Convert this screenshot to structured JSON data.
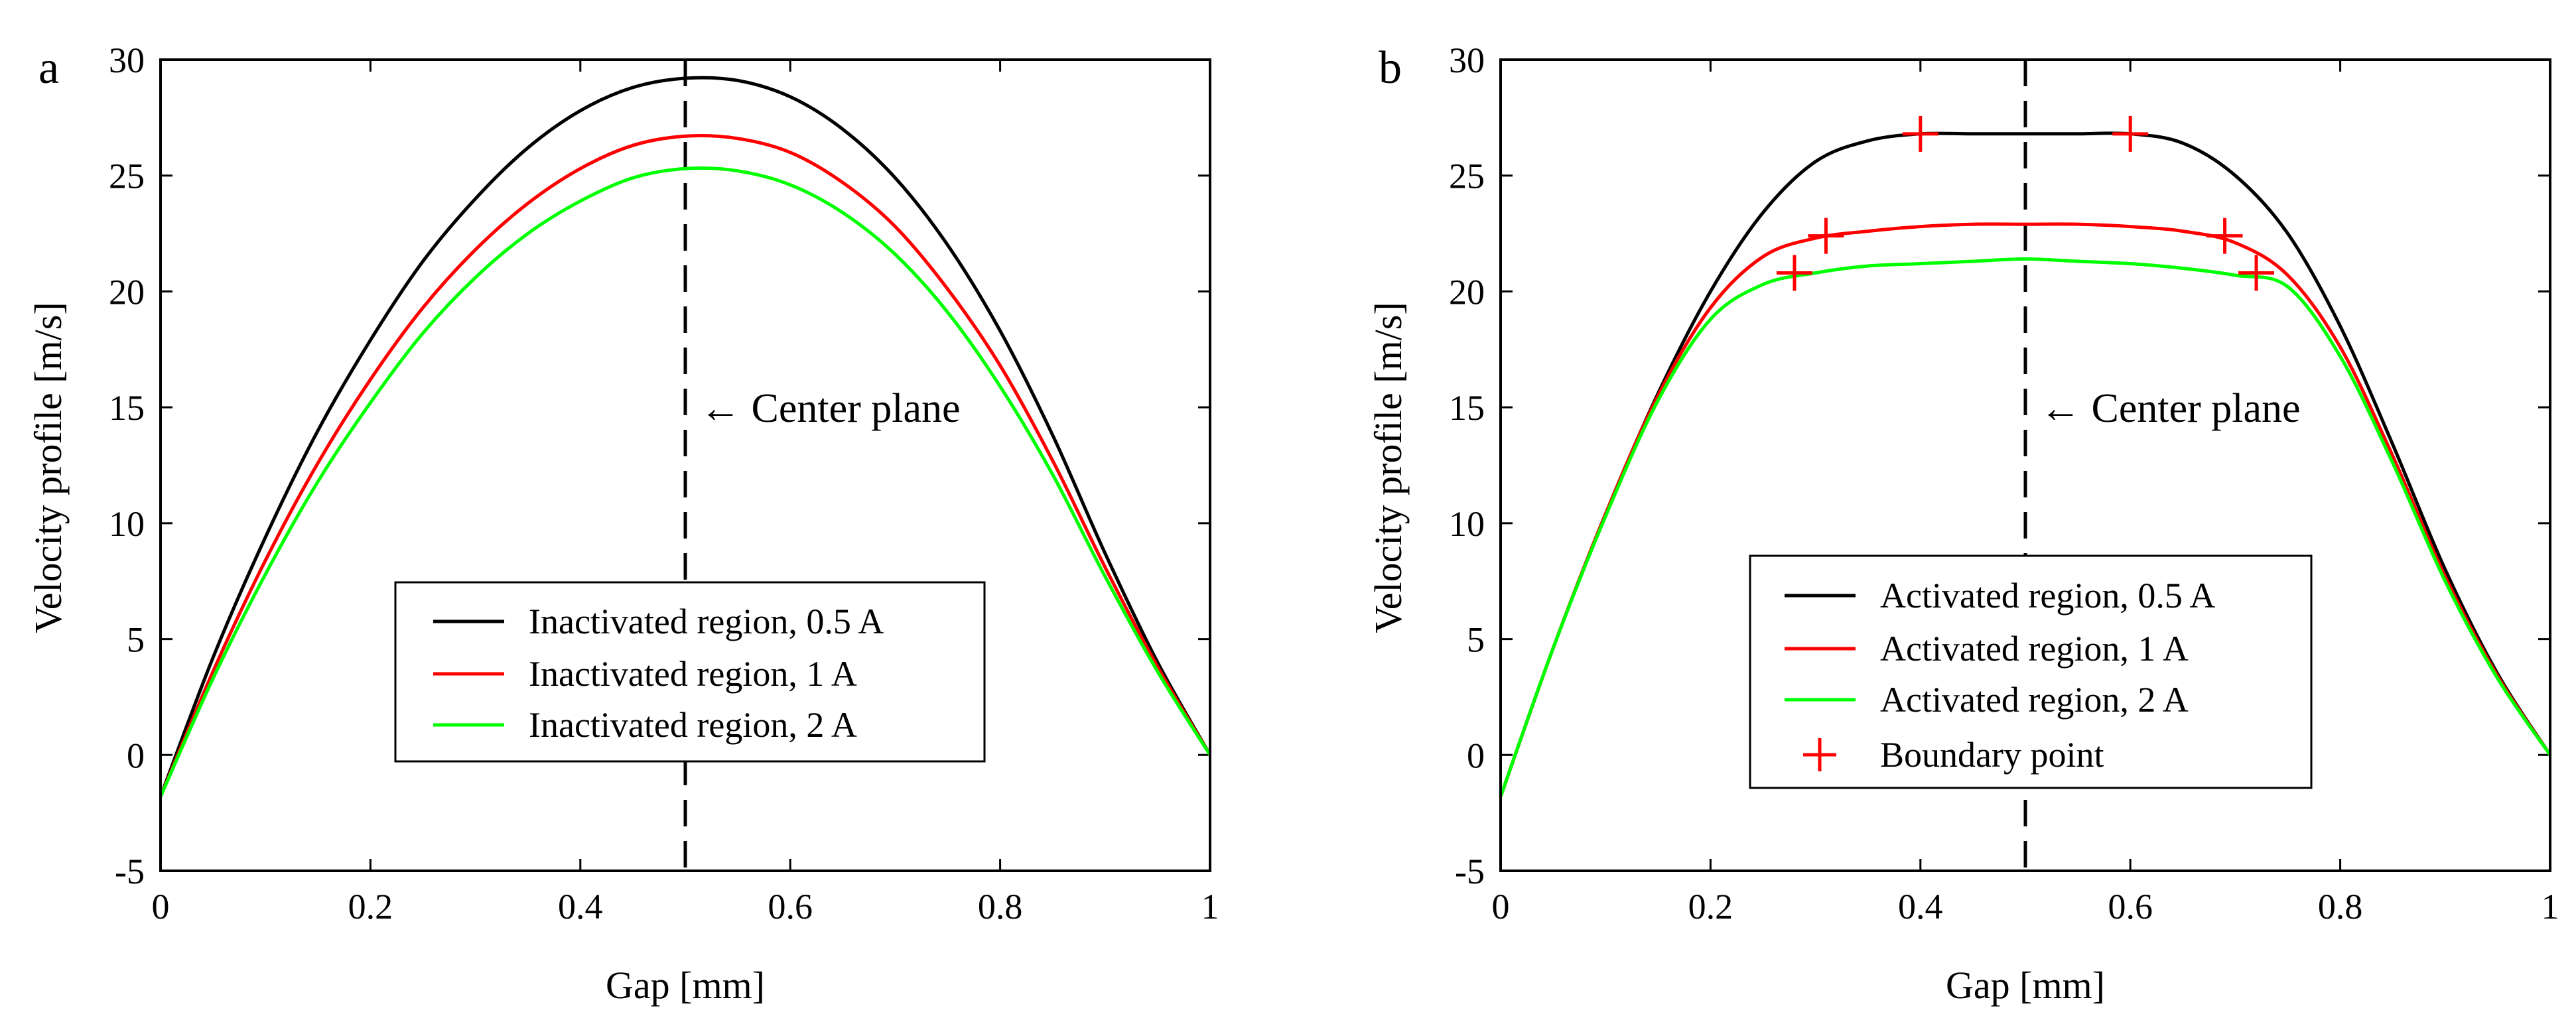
{
  "colors": {
    "black": "#000000",
    "red": "#ff0000",
    "green": "#00ff00"
  },
  "chart_data": [
    {
      "type": "line",
      "panel_label": "a",
      "title": "",
      "xlabel": "Gap [mm]",
      "ylabel": "Velocity profile [m/s]",
      "xlim": [
        0,
        1
      ],
      "ylim": [
        -5,
        30
      ],
      "xticks": [
        0,
        0.2,
        0.4,
        0.6,
        0.8,
        1
      ],
      "xtick_labels": [
        "0",
        "0.2",
        "0.4",
        "0.6",
        "0.8",
        "1"
      ],
      "yticks": [
        -5,
        0,
        5,
        10,
        15,
        20,
        25,
        30
      ],
      "ytick_labels": [
        "-5",
        "0",
        "5",
        "10",
        "15",
        "20",
        "25",
        "30"
      ],
      "grid": false,
      "annotation": {
        "text": "← Center plane",
        "x": 0.5,
        "y": 15
      },
      "reference_line": {
        "x": 0.5,
        "style": "dashed"
      },
      "legend": {
        "position": "lower-center"
      },
      "series": [
        {
          "name": "Inactivated region, 0.5 A",
          "color": "#000000",
          "x": [
            0,
            0.05,
            0.1,
            0.15,
            0.2,
            0.25,
            0.3,
            0.35,
            0.4,
            0.45,
            0.5,
            0.55,
            0.6,
            0.65,
            0.7,
            0.75,
            0.8,
            0.85,
            0.9,
            0.95,
            1
          ],
          "y": [
            -1.8,
            4.2,
            9.4,
            14.0,
            17.9,
            21.3,
            24.0,
            26.2,
            27.8,
            28.8,
            29.2,
            29.1,
            28.4,
            27.0,
            24.9,
            22.0,
            18.3,
            13.8,
            8.7,
            4.0,
            0
          ]
        },
        {
          "name": "Inactivated region, 1 A",
          "color": "#ff0000",
          "x": [
            0,
            0.05,
            0.1,
            0.15,
            0.2,
            0.25,
            0.3,
            0.35,
            0.4,
            0.45,
            0.5,
            0.55,
            0.6,
            0.65,
            0.7,
            0.75,
            0.8,
            0.85,
            0.9,
            0.95,
            1
          ],
          "y": [
            -1.8,
            3.6,
            8.4,
            12.6,
            16.2,
            19.3,
            21.8,
            23.8,
            25.3,
            26.3,
            26.7,
            26.6,
            26.0,
            24.7,
            22.8,
            20.1,
            16.8,
            12.7,
            8.1,
            3.8,
            0
          ]
        },
        {
          "name": "Inactivated region, 2 A",
          "color": "#00ff00",
          "x": [
            0,
            0.05,
            0.1,
            0.15,
            0.2,
            0.25,
            0.3,
            0.35,
            0.4,
            0.45,
            0.5,
            0.55,
            0.6,
            0.65,
            0.7,
            0.75,
            0.8,
            0.85,
            0.9,
            0.95,
            1
          ],
          "y": [
            -1.8,
            3.3,
            7.8,
            11.8,
            15.2,
            18.2,
            20.6,
            22.5,
            23.9,
            24.9,
            25.3,
            25.2,
            24.6,
            23.4,
            21.6,
            19.1,
            15.9,
            12.1,
            7.7,
            3.6,
            0
          ]
        }
      ]
    },
    {
      "type": "line",
      "panel_label": "b",
      "title": "",
      "xlabel": "Gap [mm]",
      "ylabel": "Velocity profile [m/s]",
      "xlim": [
        0,
        1
      ],
      "ylim": [
        -5,
        30
      ],
      "xticks": [
        0,
        0.2,
        0.4,
        0.6,
        0.8,
        1
      ],
      "xtick_labels": [
        "0",
        "0.2",
        "0.4",
        "0.6",
        "0.8",
        "1"
      ],
      "yticks": [
        -5,
        0,
        5,
        10,
        15,
        20,
        25,
        30
      ],
      "ytick_labels": [
        "-5",
        "0",
        "5",
        "10",
        "15",
        "20",
        "25",
        "30"
      ],
      "grid": false,
      "annotation": {
        "text": "← Center plane",
        "x": 0.5,
        "y": 15
      },
      "reference_line": {
        "x": 0.5,
        "style": "dashed"
      },
      "legend": {
        "position": "lower-center"
      },
      "series": [
        {
          "name": "Activated region, 0.5 A",
          "color": "#000000",
          "x": [
            0,
            0.05,
            0.1,
            0.15,
            0.2,
            0.25,
            0.3,
            0.35,
            0.4,
            0.45,
            0.5,
            0.55,
            0.6,
            0.65,
            0.7,
            0.75,
            0.8,
            0.85,
            0.9,
            0.95,
            1
          ],
          "y": [
            -1.8,
            4.6,
            10.4,
            15.6,
            20.0,
            23.4,
            25.6,
            26.5,
            26.8,
            26.8,
            26.8,
            26.8,
            26.8,
            26.4,
            25.0,
            22.5,
            18.5,
            13.4,
            8.0,
            3.5,
            0
          ]
        },
        {
          "name": "Activated region, 1 A",
          "color": "#ff0000",
          "x": [
            0,
            0.05,
            0.1,
            0.15,
            0.2,
            0.25,
            0.3,
            0.35,
            0.4,
            0.45,
            0.5,
            0.55,
            0.6,
            0.65,
            0.7,
            0.75,
            0.8,
            0.85,
            0.9,
            0.95,
            1
          ],
          "y": [
            -1.8,
            4.6,
            10.4,
            15.5,
            19.3,
            21.5,
            22.3,
            22.6,
            22.8,
            22.9,
            22.9,
            22.9,
            22.8,
            22.6,
            22.1,
            20.7,
            17.6,
            12.9,
            7.7,
            3.4,
            0
          ]
        },
        {
          "name": "Activated region, 2 A",
          "color": "#00ff00",
          "x": [
            0,
            0.05,
            0.1,
            0.15,
            0.2,
            0.25,
            0.3,
            0.35,
            0.4,
            0.45,
            0.5,
            0.55,
            0.6,
            0.65,
            0.7,
            0.75,
            0.8,
            0.85,
            0.9,
            0.95,
            1
          ],
          "y": [
            -1.8,
            4.6,
            10.3,
            15.3,
            18.8,
            20.3,
            20.8,
            21.1,
            21.2,
            21.3,
            21.4,
            21.3,
            21.2,
            21.0,
            20.7,
            20.2,
            17.2,
            12.6,
            7.5,
            3.3,
            0
          ]
        }
      ],
      "markers": {
        "name": "Boundary point",
        "color": "#ff0000",
        "symbol": "+",
        "points": [
          {
            "x": 0.4,
            "y": 26.8
          },
          {
            "x": 0.6,
            "y": 26.8
          },
          {
            "x": 0.31,
            "y": 22.4
          },
          {
            "x": 0.69,
            "y": 22.4
          },
          {
            "x": 0.28,
            "y": 20.8
          },
          {
            "x": 0.72,
            "y": 20.8
          }
        ]
      }
    }
  ]
}
